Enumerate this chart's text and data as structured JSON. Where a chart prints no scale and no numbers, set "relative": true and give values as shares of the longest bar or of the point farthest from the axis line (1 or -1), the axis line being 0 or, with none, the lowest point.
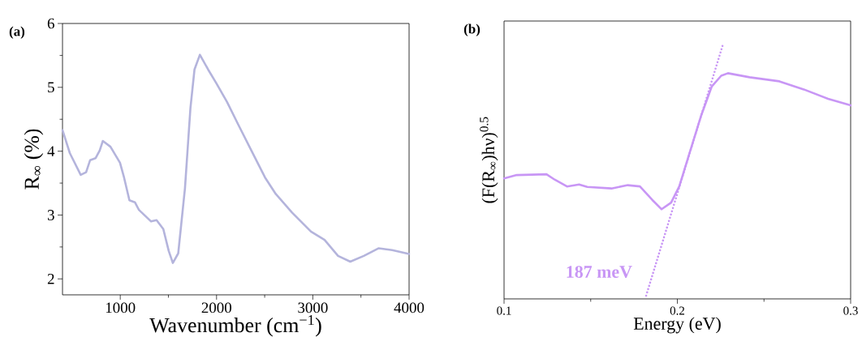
{
  "chart_data": [
    {
      "type": "line",
      "title": "(a)",
      "xlabel": "Wavenumber (cm$^{−1}$)",
      "ylabel": "R$_{∞}$ (%)",
      "xlim": [
        400,
        4000
      ],
      "xticks": [
        1000,
        2000,
        3000,
        4000
      ],
      "ylim": [
        1.75,
        6
      ],
      "yticks": [
        2,
        3,
        4,
        5,
        6
      ],
      "series": [
        {
          "color": "#b4b4dc",
          "x": [
            400,
            476,
            589,
            645,
            687,
            743,
            786,
            819,
            898,
            997,
            1039,
            1095,
            1152,
            1194,
            1320,
            1377,
            1447,
            1503,
            1546,
            1602,
            1672,
            1729,
            1771,
            1827,
            1912,
            1996,
            2109,
            2221,
            2362,
            2503,
            2615,
            2784,
            2981,
            3122,
            3262,
            3389,
            3530,
            3685,
            3825,
            4000
          ],
          "values": [
            4.33,
            3.97,
            3.63,
            3.67,
            3.86,
            3.89,
            4.01,
            4.16,
            4.07,
            3.82,
            3.59,
            3.23,
            3.2,
            3.08,
            2.9,
            2.92,
            2.78,
            2.44,
            2.25,
            2.4,
            3.42,
            4.68,
            5.28,
            5.51,
            5.28,
            5.07,
            4.77,
            4.43,
            4.01,
            3.59,
            3.33,
            3.04,
            2.74,
            2.61,
            2.36,
            2.27,
            2.36,
            2.48,
            2.45,
            2.39
          ]
        }
      ]
    },
    {
      "type": "line",
      "title": "(b)",
      "xlabel": "Energy (eV)",
      "ylabel": "(F(R$_{∞}$)hν)$^{0.5}$",
      "relative": true,
      "xlim": [
        0.1,
        0.3
      ],
      "xticks": [
        0.1,
        0.2,
        0.3
      ],
      "annotations": [
        "187 meV"
      ],
      "series": [
        {
          "color": "#c896f5",
          "x": [
            0.1,
            0.1073,
            0.1245,
            0.1292,
            0.1363,
            0.1433,
            0.148,
            0.162,
            0.1714,
            0.1784,
            0.1855,
            0.1909,
            0.1964,
            0.2011,
            0.2073,
            0.2136,
            0.2198,
            0.2253,
            0.2292,
            0.2417,
            0.2589,
            0.273,
            0.287,
            0.3
          ],
          "values": [
            0.476,
            0.489,
            0.492,
            0.471,
            0.444,
            0.452,
            0.442,
            0.436,
            0.449,
            0.444,
            0.391,
            0.354,
            0.38,
            0.444,
            0.582,
            0.721,
            0.838,
            0.881,
            0.891,
            0.875,
            0.859,
            0.827,
            0.79,
            0.764
          ]
        },
        {
          "type": "line",
          "line_style": "dotted",
          "color": "#c896f5",
          "x": [
            0.182,
            0.2261
          ],
          "values": [
            0.013,
            1.0
          ]
        }
      ]
    }
  ]
}
